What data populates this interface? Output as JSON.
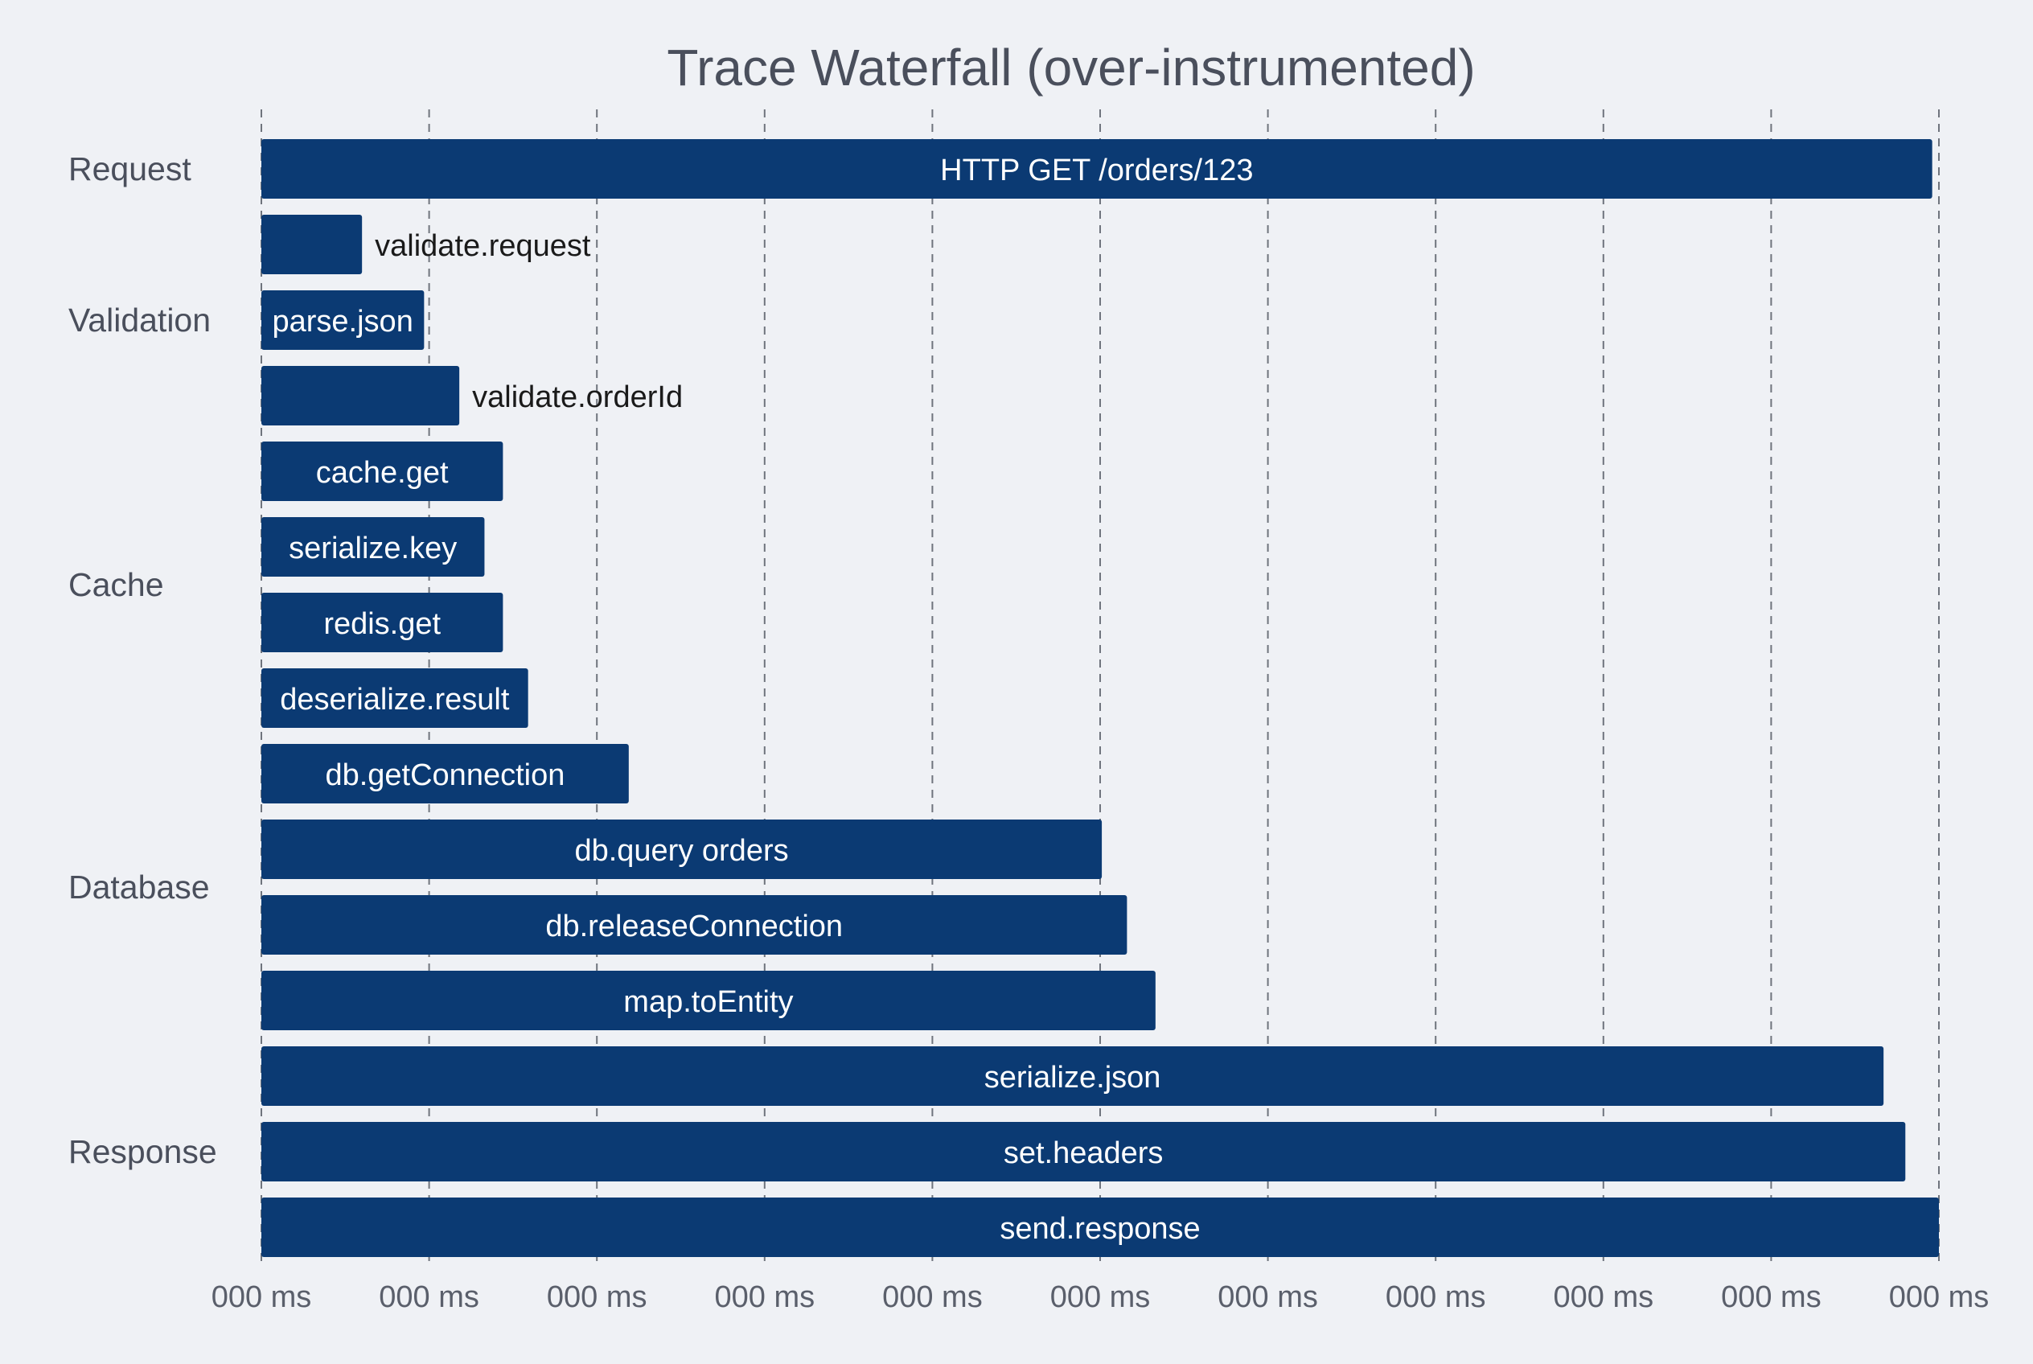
{
  "chart_data": {
    "type": "bar",
    "orientation": "horizontal",
    "title": "Trace Waterfall (over-instrumented)",
    "xlabel": "",
    "ylabel": "",
    "xlim": [
      0,
      100
    ],
    "grid": "vertical dashed",
    "x_ticks": [
      "000 ms",
      "000 ms",
      "000 ms",
      "000 ms",
      "000 ms",
      "000 ms",
      "000 ms",
      "000 ms",
      "000 ms",
      "000 ms",
      "000 ms"
    ],
    "bar_color": "#0b3a73",
    "label_inside_color": "#ffffff",
    "label_outside_color": "#1a1a1a",
    "groups": [
      {
        "name": "Request",
        "first": 0,
        "last": 0
      },
      {
        "name": "Validation",
        "first": 1,
        "last": 3
      },
      {
        "name": "Cache",
        "first": 4,
        "last": 7
      },
      {
        "name": "Database",
        "first": 8,
        "last": 11
      },
      {
        "name": "Response",
        "first": 12,
        "last": 14
      }
    ],
    "spans": [
      {
        "name": "HTTP GET /orders/123",
        "start": 0,
        "end": 99.6
      },
      {
        "name": "validate.request",
        "start": 0,
        "end": 6.0
      },
      {
        "name": "parse.json",
        "start": 0,
        "end": 9.7
      },
      {
        "name": "validate.orderId",
        "start": 0,
        "end": 11.8
      },
      {
        "name": "cache.get",
        "start": 0,
        "end": 14.4
      },
      {
        "name": "serialize.key",
        "start": 0,
        "end": 13.3
      },
      {
        "name": "redis.get",
        "start": 0,
        "end": 14.4
      },
      {
        "name": "deserialize.result",
        "start": 0,
        "end": 15.9
      },
      {
        "name": "db.getConnection",
        "start": 0,
        "end": 21.9
      },
      {
        "name": "db.query orders",
        "start": 0,
        "end": 50.1
      },
      {
        "name": "db.releaseConnection",
        "start": 0,
        "end": 51.6
      },
      {
        "name": "map.toEntity",
        "start": 0,
        "end": 53.3
      },
      {
        "name": "serialize.json",
        "start": 0,
        "end": 96.7
      },
      {
        "name": "set.headers",
        "start": 0,
        "end": 98.0
      },
      {
        "name": "send.response",
        "start": 0,
        "end": 100
      }
    ]
  }
}
